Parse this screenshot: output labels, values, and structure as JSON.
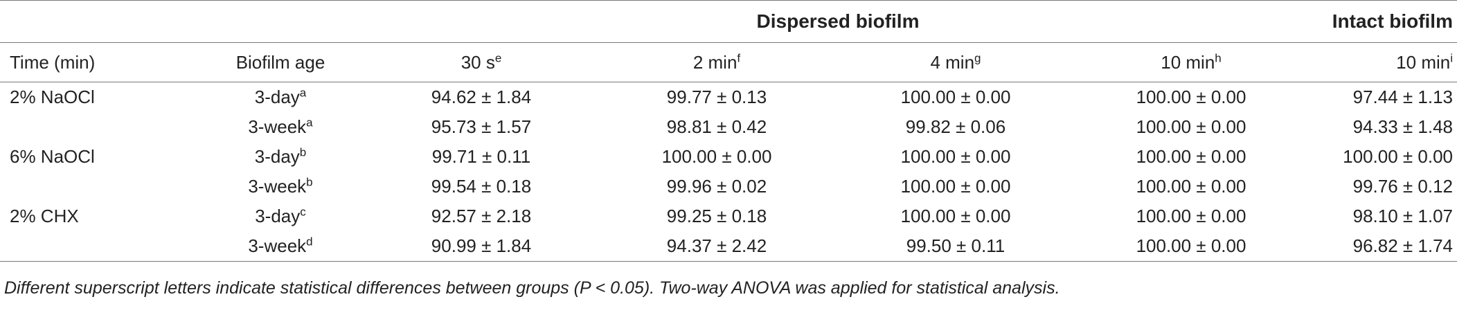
{
  "group_headers": {
    "dispersed": "Dispersed biofilm",
    "intact": "Intact biofilm"
  },
  "columns": [
    {
      "label": "Time (min)",
      "sup": ""
    },
    {
      "label": "Biofilm age",
      "sup": ""
    },
    {
      "label": "30 s",
      "sup": "e"
    },
    {
      "label": "2 min",
      "sup": "f"
    },
    {
      "label": "4 min",
      "sup": "g"
    },
    {
      "label": "10 min",
      "sup": "h"
    },
    {
      "label": "10 min",
      "sup": "i"
    }
  ],
  "rows": [
    {
      "group": "2% NaOCl",
      "age": "3-day",
      "age_sup": "a",
      "values": [
        "94.62 ± 1.84",
        "99.77 ± 0.13",
        "100.00 ± 0.00",
        "100.00 ± 0.00",
        "97.44 ± 1.13"
      ]
    },
    {
      "group": "",
      "age": "3-week",
      "age_sup": "a",
      "values": [
        "95.73 ± 1.57",
        "98.81 ± 0.42",
        "99.82 ± 0.06",
        "100.00 ± 0.00",
        "94.33 ± 1.48"
      ]
    },
    {
      "group": "6% NaOCl",
      "age": "3-day",
      "age_sup": "b",
      "values": [
        "99.71 ± 0.11",
        "100.00 ± 0.00",
        "100.00 ± 0.00",
        "100.00 ± 0.00",
        "100.00 ± 0.00"
      ]
    },
    {
      "group": "",
      "age": "3-week",
      "age_sup": "b",
      "values": [
        "99.54 ± 0.18",
        "99.96 ± 0.02",
        "100.00 ± 0.00",
        "100.00 ± 0.00",
        "99.76 ± 0.12"
      ]
    },
    {
      "group": "2% CHX",
      "age": "3-day",
      "age_sup": "c",
      "values": [
        "92.57 ± 2.18",
        "99.25 ± 0.18",
        "100.00 ± 0.00",
        "100.00 ± 0.00",
        "98.10 ± 1.07"
      ]
    },
    {
      "group": "",
      "age": "3-week",
      "age_sup": "d",
      "values": [
        "90.99 ± 1.84",
        "94.37 ± 2.42",
        "99.50 ± 0.11",
        "100.00 ± 0.00",
        "96.82 ± 1.74"
      ]
    }
  ],
  "footnote": "Different superscript letters indicate statistical differences between groups (P < 0.05). Two-way ANOVA was applied for statistical analysis."
}
